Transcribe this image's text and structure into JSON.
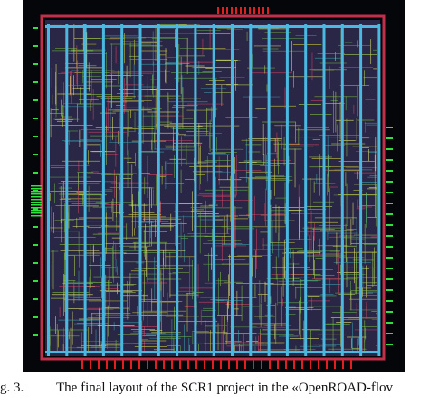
{
  "figure": {
    "label": "g. 3.",
    "caption": "The final layout of the SCR1 project in the «OpenROAD-flov"
  }
}
